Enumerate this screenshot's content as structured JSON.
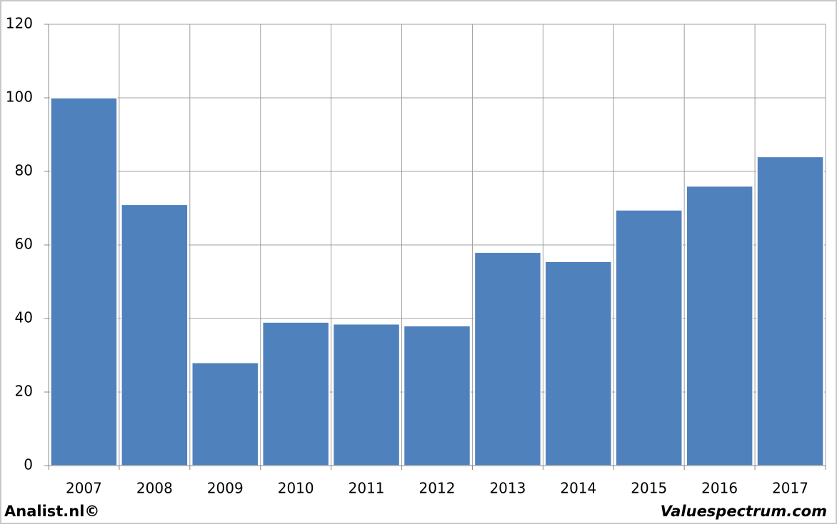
{
  "chart_data": {
    "type": "bar",
    "categories": [
      "2007",
      "2008",
      "2009",
      "2010",
      "2011",
      "2012",
      "2013",
      "2014",
      "2015",
      "2016",
      "2017"
    ],
    "values": [
      100,
      71,
      28,
      39,
      38.5,
      38,
      58,
      55.5,
      69.5,
      76,
      84
    ],
    "color": "#4f81bd",
    "ylim": [
      0,
      120
    ],
    "yticks": [
      0,
      20,
      40,
      60,
      80,
      100,
      120
    ],
    "grid": true,
    "footer_left": "Analist.nl©",
    "footer_right": "Valuespectrum.com"
  }
}
